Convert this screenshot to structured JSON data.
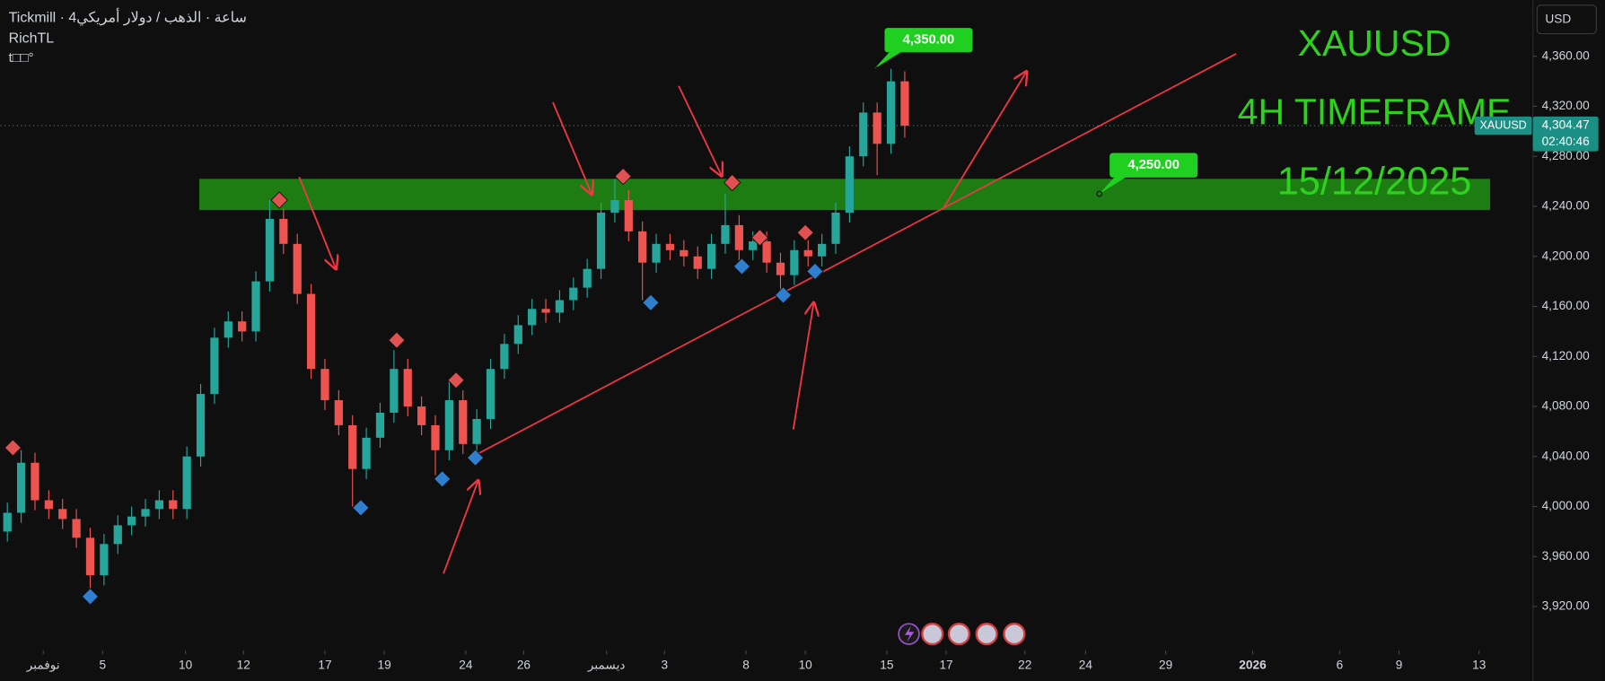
{
  "chart_data": {
    "type": "candlestick",
    "title": "Tickmill · 4ساعة · الذهب / دولار أمريكي",
    "subtitle": "RichTL",
    "indicator": "t□□°",
    "currency": "USD",
    "symbol": "XAUUSD",
    "countdown": "02:40:46",
    "annotations": [
      "XAUUSD",
      "4H TIMEFRAME",
      "15/12/2025"
    ],
    "annotation_color": "#2fd11f",
    "up_color": "#26a69a",
    "down_color": "#ef5350",
    "x": [
      0,
      1,
      2,
      3,
      4,
      5,
      6,
      7,
      8,
      9,
      10,
      11,
      12,
      13,
      14,
      15,
      16,
      17,
      18,
      19,
      20,
      21,
      22,
      23,
      24,
      25,
      26,
      27,
      28,
      29,
      30,
      31,
      32,
      33,
      34,
      35,
      36,
      37,
      38,
      39,
      40,
      41,
      42,
      43,
      44,
      45,
      46,
      47,
      48,
      49,
      50,
      51,
      52,
      53,
      54,
      55,
      56,
      57,
      58,
      59,
      60,
      61,
      62,
      63,
      64,
      65
    ],
    "open": [
      3980,
      3995,
      4035,
      4005,
      3998,
      3990,
      3975,
      3945,
      3970,
      3985,
      3992,
      3998,
      4005,
      3998,
      4040,
      4090,
      4135,
      4148,
      4140,
      4180,
      4230,
      4210,
      4170,
      4110,
      4085,
      4065,
      4030,
      4055,
      4075,
      4110,
      4080,
      4065,
      4045,
      4085,
      4050,
      4070,
      4110,
      4130,
      4145,
      4158,
      4155,
      4165,
      4175,
      4190,
      4235,
      4245,
      4220,
      4195,
      4210,
      4205,
      4200,
      4190,
      4210,
      4225,
      4205,
      4212,
      4195,
      4185,
      4205,
      4200,
      4210,
      4235,
      4280,
      4315,
      4290,
      4340
    ],
    "high": [
      4003,
      4045,
      4043,
      4013,
      4006,
      3998,
      3983,
      3978,
      3993,
      4000,
      4006,
      4013,
      4013,
      4048,
      4098,
      4143,
      4156,
      4156,
      4188,
      4245,
      4238,
      4218,
      4178,
      4118,
      4093,
      4073,
      4063,
      4083,
      4125,
      4118,
      4088,
      4073,
      4100,
      4093,
      4078,
      4118,
      4138,
      4153,
      4166,
      4166,
      4173,
      4183,
      4198,
      4243,
      4262,
      4253,
      4228,
      4218,
      4218,
      4213,
      4208,
      4218,
      4250,
      4233,
      4220,
      4220,
      4203,
      4213,
      4213,
      4218,
      4243,
      4288,
      4323,
      4323,
      4350,
      4348
    ],
    "low": [
      3972,
      3987,
      3997,
      3990,
      3982,
      3967,
      3930,
      3937,
      3962,
      3977,
      3984,
      3990,
      3990,
      3990,
      4032,
      4082,
      4127,
      4132,
      4132,
      4172,
      4202,
      4162,
      4102,
      4077,
      4057,
      4000,
      4022,
      4047,
      4067,
      4072,
      4057,
      4025,
      4037,
      4042,
      4042,
      4062,
      4102,
      4122,
      4137,
      4147,
      4147,
      4157,
      4167,
      4182,
      4227,
      4212,
      4165,
      4187,
      4197,
      4192,
      4182,
      4182,
      4202,
      4197,
      4197,
      4187,
      4172,
      4177,
      4192,
      4192,
      4202,
      4227,
      4272,
      4265,
      4282,
      4295
    ],
    "close": [
      3995,
      4035,
      4005,
      3998,
      3990,
      3975,
      3945,
      3970,
      3985,
      3992,
      3998,
      4005,
      3998,
      4040,
      4090,
      4135,
      4148,
      4140,
      4180,
      4230,
      4210,
      4170,
      4110,
      4085,
      4065,
      4030,
      4055,
      4075,
      4110,
      4080,
      4065,
      4045,
      4085,
      4050,
      4070,
      4110,
      4130,
      4145,
      4158,
      4155,
      4165,
      4175,
      4190,
      4235,
      4245,
      4220,
      4195,
      4210,
      4205,
      4200,
      4190,
      4210,
      4225,
      4205,
      4212,
      4195,
      4185,
      4205,
      4200,
      4210,
      4235,
      4280,
      4315,
      4290,
      4340,
      4304.47
    ],
    "last": {
      "value": 4304.47,
      "label": "4,304.47"
    },
    "markers": [
      {
        "color": "#e05252",
        "x": [
          0.4,
          19.7,
          28.2,
          32.5,
          44.6,
          52.5,
          54.5,
          57.8
        ],
        "y": [
          4047,
          4245,
          4133,
          4101,
          4264,
          4259,
          4215,
          4219
        ]
      },
      {
        "color": "#2f7fd0",
        "x": [
          6.0,
          25.6,
          31.5,
          33.9,
          46.6,
          53.2,
          56.2,
          58.5
        ],
        "y": [
          3928,
          3999,
          4022,
          4039,
          4163,
          4192,
          4169,
          4188
        ]
      }
    ],
    "zone": {
      "color": "#1e7d12",
      "x": [
        13.9,
        107.4
      ],
      "y": [
        4237,
        4262
      ]
    },
    "trendline": {
      "color": "#f23645",
      "x": [
        33.7,
        89.0
      ],
      "y": [
        4040,
        4362
      ]
    },
    "callouts": [
      {
        "x": 62.8,
        "value": 4350,
        "label": "4,350.00"
      },
      {
        "x": 79.1,
        "value": 4250,
        "label": "4,250.00"
      }
    ],
    "xlim": [
      -0.5,
      110.5
    ],
    "ylim": [
      3885,
      4405
    ],
    "xticks": [
      {
        "value": 2.6,
        "label": "نوفمبر"
      },
      {
        "value": 6.9,
        "label": "5"
      },
      {
        "value": 12.9,
        "label": "10"
      },
      {
        "value": 17.1,
        "label": "12"
      },
      {
        "value": 23.0,
        "label": "17"
      },
      {
        "value": 27.3,
        "label": "19"
      },
      {
        "value": 33.2,
        "label": "24"
      },
      {
        "value": 37.4,
        "label": "26"
      },
      {
        "value": 43.4,
        "label": "ديسمبر"
      },
      {
        "value": 47.6,
        "label": "3"
      },
      {
        "value": 53.5,
        "label": "8"
      },
      {
        "value": 57.8,
        "label": "10"
      },
      {
        "value": 63.7,
        "label": "15"
      },
      {
        "value": 68.0,
        "label": "17"
      },
      {
        "value": 73.7,
        "label": "22"
      },
      {
        "value": 78.1,
        "label": "24"
      },
      {
        "value": 83.9,
        "label": "29"
      },
      {
        "value": 90.2,
        "label": "2026",
        "bold": true
      },
      {
        "value": 96.5,
        "label": "6"
      },
      {
        "value": 100.8,
        "label": "9"
      },
      {
        "value": 106.6,
        "label": "13"
      }
    ],
    "yticks": [
      {
        "value": 3920,
        "label": "3,920.00"
      },
      {
        "value": 3960,
        "label": "3,960.00"
      },
      {
        "value": 4000,
        "label": "4,000.00"
      },
      {
        "value": 4040,
        "label": "4,040.00"
      },
      {
        "value": 4080,
        "label": "4,080.00"
      },
      {
        "value": 4120,
        "label": "4,120.00"
      },
      {
        "value": 4160,
        "label": "4,160.00"
      },
      {
        "value": 4200,
        "label": "4,200.00"
      },
      {
        "value": 4240,
        "label": "4,240.00"
      },
      {
        "value": 4280,
        "label": "4,280.00"
      },
      {
        "value": 4320,
        "label": "4,320.00"
      },
      {
        "value": 4360,
        "label": "4,360.00"
      }
    ]
  }
}
